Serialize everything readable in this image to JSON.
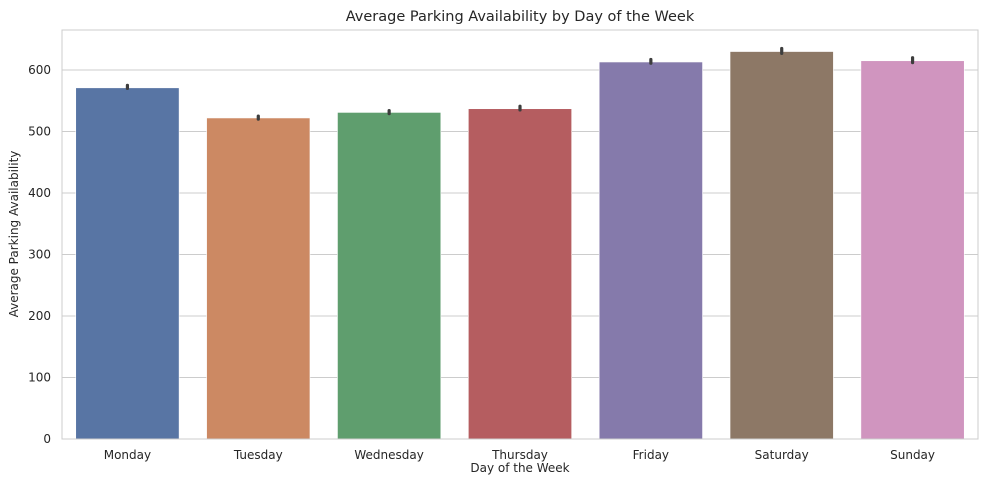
{
  "chart_data": {
    "type": "bar",
    "title": "Average Parking Availability by Day of the Week",
    "xlabel": "Day of the Week",
    "ylabel": "Average Parking Availability",
    "categories": [
      "Monday",
      "Tuesday",
      "Wednesday",
      "Thursday",
      "Friday",
      "Saturday",
      "Sunday"
    ],
    "values": [
      571,
      522,
      531,
      537,
      613,
      630,
      615
    ],
    "error_bars": [
      [
        570,
        575
      ],
      [
        520,
        525
      ],
      [
        529,
        534
      ],
      [
        535,
        541
      ],
      [
        611,
        617
      ],
      [
        627,
        635
      ],
      [
        612,
        620
      ]
    ],
    "colors": [
      "#5875a4",
      "#cc8963",
      "#5f9e6e",
      "#b55d60",
      "#857aab",
      "#8d7866",
      "#d095bf"
    ],
    "ylim": [
      0,
      665
    ],
    "yticks": [
      0,
      100,
      200,
      300,
      400,
      500,
      600
    ],
    "grid": true,
    "legend": "none"
  }
}
